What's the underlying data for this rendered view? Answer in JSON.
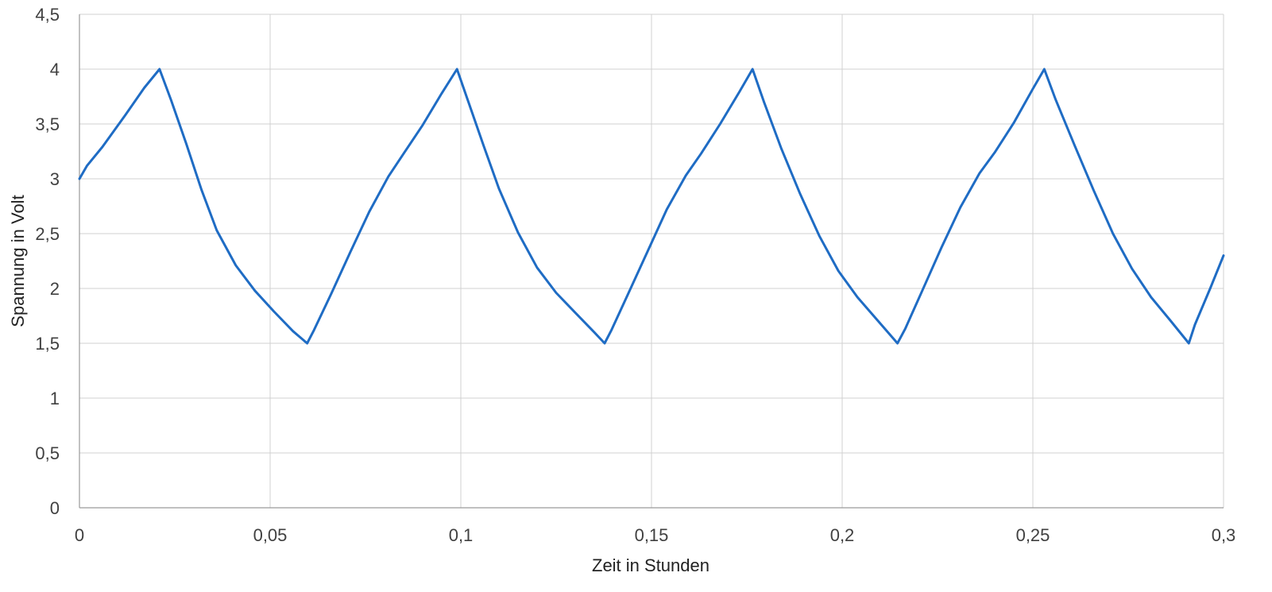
{
  "chart_data": {
    "type": "line",
    "title": "",
    "xlabel": "Zeit in Stunden",
    "ylabel": "Spannung in Volt",
    "xlim": [
      0,
      0.3
    ],
    "ylim": [
      0,
      4.5
    ],
    "x_ticks": [
      0,
      0.05,
      0.1,
      0.15,
      0.2,
      0.25,
      0.3
    ],
    "x_tick_labels": [
      "0",
      "0,05",
      "0,1",
      "0,15",
      "0,2",
      "0,25",
      "0,3"
    ],
    "y_ticks": [
      0,
      0.5,
      1,
      1.5,
      2,
      2.5,
      3,
      3.5,
      4,
      4.5
    ],
    "y_tick_labels": [
      "0",
      "0,5",
      "1",
      "1,5",
      "2",
      "2,5",
      "3",
      "3,5",
      "4",
      "4,5"
    ],
    "grid": true,
    "legend": "none",
    "series_color": "#1f6cc4",
    "series": [
      {
        "x": [
          0,
          0.002,
          0.006,
          0.012,
          0.017,
          0.021,
          0.024,
          0.028,
          0.032,
          0.036,
          0.041,
          0.046,
          0.051,
          0.056,
          0.0597,
          0.0615,
          0.066,
          0.071,
          0.076,
          0.081,
          0.085,
          0.09,
          0.095,
          0.099,
          0.102,
          0.106,
          0.11,
          0.115,
          0.12,
          0.125,
          0.13,
          0.135,
          0.1377,
          0.1395,
          0.144,
          0.149,
          0.154,
          0.159,
          0.163,
          0.168,
          0.173,
          0.1765,
          0.1795,
          0.184,
          0.189,
          0.194,
          0.199,
          0.204,
          0.209,
          0.2145,
          0.2165,
          0.221,
          0.226,
          0.231,
          0.236,
          0.24,
          0.245,
          0.25,
          0.253,
          0.256,
          0.261,
          0.266,
          0.271,
          0.276,
          0.281,
          0.286,
          0.2909,
          0.2925,
          0.2965,
          0.3
        ],
        "y": [
          3.0,
          3.12,
          3.29,
          3.58,
          3.83,
          4.0,
          3.72,
          3.32,
          2.9,
          2.53,
          2.21,
          1.98,
          1.79,
          1.61,
          1.5,
          1.62,
          1.95,
          2.33,
          2.7,
          3.02,
          3.23,
          3.49,
          3.78,
          4.0,
          3.7,
          3.3,
          2.91,
          2.51,
          2.19,
          1.96,
          1.78,
          1.6,
          1.5,
          1.62,
          1.96,
          2.34,
          2.72,
          3.03,
          3.23,
          3.5,
          3.79,
          4.0,
          3.7,
          3.28,
          2.86,
          2.48,
          2.16,
          1.92,
          1.72,
          1.5,
          1.63,
          1.98,
          2.37,
          2.74,
          3.05,
          3.24,
          3.51,
          3.82,
          4.0,
          3.72,
          3.3,
          2.89,
          2.5,
          2.18,
          1.92,
          1.71,
          1.5,
          1.67,
          2.0,
          2.3
        ]
      }
    ]
  }
}
